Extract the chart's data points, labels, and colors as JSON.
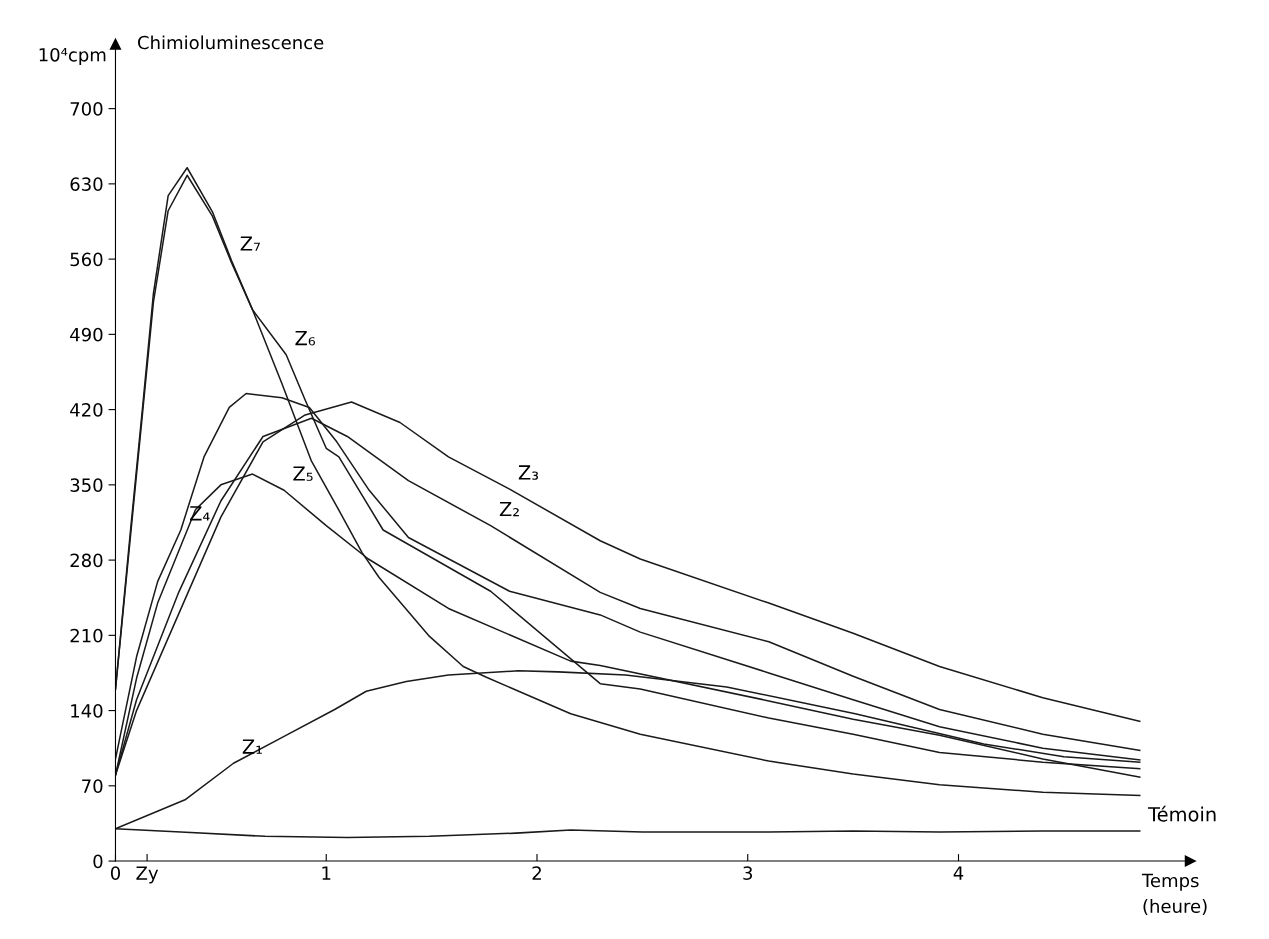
{
  "chart_data": {
    "type": "line",
    "title": "Chimioluminescence",
    "ylabel": "10⁴cpm",
    "xlabel": "Temps\n(heure)",
    "xlim": [
      0,
      5.1
    ],
    "ylim": [
      0,
      760
    ],
    "xticks": [
      {
        "value": 0,
        "label": "0"
      },
      {
        "value": 0.15,
        "label": "Zy"
      },
      1,
      2,
      3,
      4
    ],
    "yticks": [
      0,
      70,
      140,
      210,
      280,
      350,
      420,
      490,
      560,
      630,
      700
    ],
    "grid": false,
    "marker": "none",
    "line_style": "solid",
    "series": [
      {
        "color": "#1a1a1a",
        "x": [
          0,
          0.31,
          0.71,
          1.1,
          1.49,
          1.9,
          2.16,
          2.5,
          3.1,
          3.5,
          3.91,
          4.4,
          4.86
        ],
        "values": [
          30,
          27,
          23,
          22,
          23,
          26,
          29,
          27,
          27,
          28,
          27,
          28,
          28
        ]
      },
      {
        "color": "#1a1a1a",
        "x": [
          0,
          0.33,
          0.56,
          0.8,
          1.04,
          1.19,
          1.38,
          1.58,
          1.91,
          2.1,
          2.42,
          2.9,
          3.51,
          4.12,
          4.5,
          4.86
        ],
        "values": [
          30,
          57,
          91,
          116,
          141,
          158,
          167,
          173,
          177,
          176,
          173,
          162,
          137,
          109,
          97,
          92
        ]
      },
      {
        "color": "#1a1a1a",
        "x": [
          0,
          0.1,
          0.3,
          0.5,
          0.7,
          0.93,
          1.1,
          1.39,
          1.78,
          2.3,
          2.49,
          3.1,
          3.5,
          3.91,
          4.4,
          4.86
        ],
        "values": [
          80,
          150,
          250,
          335,
          395,
          412,
          395,
          354,
          312,
          250,
          235,
          204,
          172,
          141,
          118,
          103
        ]
      },
      {
        "color": "#1a1a1a",
        "x": [
          0,
          0.1,
          0.3,
          0.5,
          0.7,
          0.9,
          1.12,
          1.35,
          1.58,
          1.87,
          2.3,
          2.49,
          3.1,
          3.5,
          3.91,
          4.4,
          4.86
        ],
        "values": [
          80,
          140,
          230,
          320,
          390,
          415,
          427,
          408,
          376,
          346,
          298,
          281,
          240,
          212,
          181,
          152,
          130
        ]
      },
      {
        "color": "#1a1a1a",
        "x": [
          0,
          0.1,
          0.2,
          0.31,
          0.42,
          0.54,
          0.62,
          0.79,
          0.92,
          1.05,
          1.2,
          1.39,
          1.87,
          2.3,
          2.49,
          3.1,
          3.5,
          3.91,
          4.4,
          4.86
        ],
        "values": [
          95,
          190,
          260,
          308,
          376,
          422,
          435,
          431,
          422,
          390,
          346,
          301,
          251,
          229,
          213,
          175,
          150,
          125,
          105,
          94
        ]
      },
      {
        "color": "#1a1a1a",
        "x": [
          0,
          0.1,
          0.2,
          0.38,
          0.5,
          0.65,
          0.8,
          1.0,
          1.2,
          1.58,
          2.16,
          2.3,
          3.1,
          3.5,
          3.91,
          4.4,
          4.86
        ],
        "values": [
          80,
          170,
          240,
          327,
          350,
          360,
          345,
          312,
          281,
          235,
          186,
          182,
          149,
          132,
          117,
          95,
          78
        ]
      },
      {
        "color": "#1a1a1a",
        "x": [
          0,
          0.07,
          0.13,
          0.18,
          0.25,
          0.34,
          0.46,
          0.55,
          0.65,
          0.81,
          0.9,
          1.0,
          1.06,
          1.27,
          1.78,
          2.3,
          2.49,
          3.1,
          3.5,
          3.91,
          4.4,
          4.86
        ],
        "values": [
          160,
          300,
          420,
          520,
          605,
          638,
          600,
          557,
          513,
          471,
          429,
          384,
          376,
          308,
          251,
          165,
          160,
          133,
          118,
          101,
          92,
          86
        ]
      },
      {
        "color": "#1a1a1a",
        "x": [
          0,
          0.07,
          0.13,
          0.18,
          0.25,
          0.34,
          0.46,
          0.55,
          0.65,
          0.79,
          0.93,
          1.05,
          1.17,
          1.25,
          1.49,
          1.65,
          1.76,
          2.16,
          2.49,
          3.1,
          3.5,
          3.91,
          4.4,
          4.86
        ],
        "values": [
          160,
          305,
          425,
          528,
          619,
          645,
          604,
          559,
          513,
          444,
          372,
          330,
          287,
          264,
          209,
          181,
          171,
          137,
          118,
          93,
          81,
          71,
          64,
          61
        ]
      }
    ],
    "annotations": [
      {
        "text": "Témoin",
        "x": 4.86,
        "y": 28
      },
      {
        "text": "Z₁",
        "x": 0.56,
        "y": 91
      },
      {
        "text": "Z₂",
        "x": 1.78,
        "y": 312
      },
      {
        "text": "Z₃",
        "x": 1.87,
        "y": 346
      },
      {
        "text": "Z₄",
        "x": 0.31,
        "y": 308
      },
      {
        "text": "Z₅",
        "x": 0.8,
        "y": 345
      },
      {
        "text": "Z₆",
        "x": 0.81,
        "y": 471
      },
      {
        "text": "Z₇",
        "x": 0.55,
        "y": 559
      }
    ]
  }
}
